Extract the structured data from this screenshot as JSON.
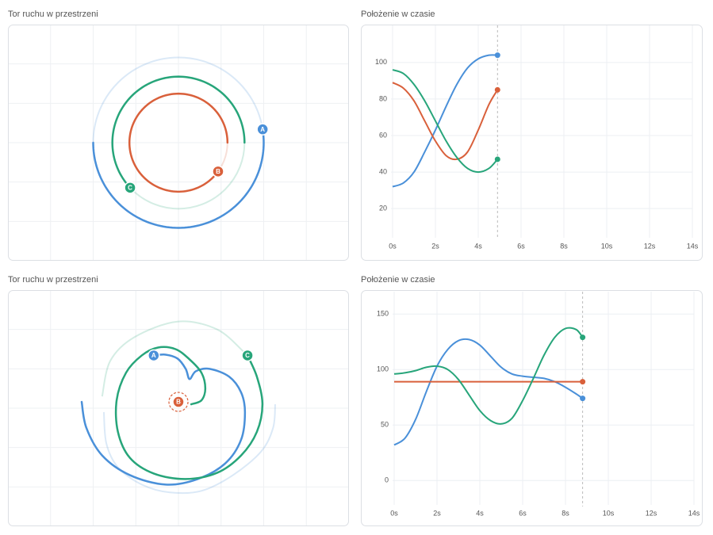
{
  "chart_data": [
    {
      "type": "orbit",
      "title": "Tor ruchu w przestrzeni",
      "xlim": [
        -4,
        4
      ],
      "ylim": [
        -3,
        3
      ],
      "xticks": [
        -3,
        -2,
        -1,
        0,
        1,
        2,
        3
      ],
      "yticks": [
        -2,
        -1,
        0,
        1,
        2
      ],
      "grid": true,
      "series": [
        {
          "name": "A",
          "color": "#4a90d9",
          "radius": 2,
          "start_angle": 180,
          "end_angle": 369
        },
        {
          "name": "C",
          "color": "#27a57a",
          "radius": 1.55,
          "start_angle": 0,
          "end_angle": 223
        },
        {
          "name": "B",
          "color": "#d9603b",
          "radius": 1.15,
          "start_angle": 0,
          "end_angle": 324
        }
      ]
    },
    {
      "type": "line",
      "title": "Położenie w czasie",
      "xlim": [
        0,
        14
      ],
      "ylim": [
        4,
        116
      ],
      "xticks": [
        {
          "value": 0,
          "label": "0s"
        },
        {
          "value": 2,
          "label": "2s"
        },
        {
          "value": 4,
          "label": "4s"
        },
        {
          "value": 6,
          "label": "6s"
        },
        {
          "value": 8,
          "label": "8s"
        },
        {
          "value": 10,
          "label": "10s"
        },
        {
          "value": 12,
          "label": "12s"
        },
        {
          "value": 14,
          "label": "14s"
        }
      ],
      "yticks": [
        20,
        40,
        60,
        80,
        100
      ],
      "grid": true,
      "current_time": 4.9,
      "x": [
        0,
        0.5,
        1,
        1.5,
        2,
        2.5,
        3,
        3.5,
        4,
        4.5,
        4.9
      ],
      "series": [
        {
          "name": "A",
          "color": "#4a90d9",
          "values": [
            32,
            34,
            40,
            51,
            63,
            76,
            88,
            97,
            102,
            104,
            104
          ]
        },
        {
          "name": "B",
          "color": "#d9603b",
          "values": [
            89,
            86,
            79,
            68,
            57,
            49,
            47,
            51,
            63,
            77,
            85
          ]
        },
        {
          "name": "C",
          "color": "#27a57a",
          "values": [
            96,
            94,
            88,
            79,
            68,
            57,
            48,
            42,
            40,
            42,
            47
          ]
        }
      ]
    },
    {
      "type": "path",
      "title": "Tor ruchu w przestrzeni",
      "xlim": [
        -4,
        4
      ],
      "ylim": [
        -3,
        3
      ],
      "xticks": [
        -3,
        -2,
        -1,
        0,
        1,
        2,
        3
      ],
      "yticks": [
        -2,
        -1,
        0,
        1,
        2
      ],
      "grid": true,
      "series": [
        {
          "name": "A",
          "color": "#4a90d9",
          "x": [
            -2.27,
            -2.16,
            -1.79,
            -1.14,
            -0.3,
            0.45,
            1.1,
            1.47,
            1.56,
            1.47,
            1.19,
            0.73,
            0.41,
            0.26,
            0.17,
            -0.02,
            -0.3,
            -0.58
          ],
          "y": [
            0.16,
            -0.5,
            -1.2,
            -1.7,
            -1.94,
            -1.8,
            -1.4,
            -0.8,
            -0.1,
            0.4,
            0.8,
            1.0,
            0.94,
            0.74,
            1.0,
            1.26,
            1.36,
            1.34
          ],
          "trail_x": [
            -1.75,
            -1.69,
            -1.42,
            -0.86,
            -0.2,
            0.54,
            1.28,
            1.94,
            2.22,
            2.27
          ],
          "trail_y": [
            -0.1,
            -0.9,
            -1.5,
            -1.94,
            -2.14,
            -2.1,
            -1.7,
            -1.1,
            -0.5,
            0.1
          ]
        },
        {
          "name": "C",
          "color": "#27a57a",
          "x": [
            0.3,
            0.54,
            0.63,
            0.54,
            0.26,
            -0.07,
            -0.48,
            -0.86,
            -1.23,
            -1.45,
            -1.42,
            -1.14,
            -0.58,
            0.17,
            0.91,
            1.47,
            1.84,
            1.97,
            1.84,
            1.62
          ],
          "y": [
            0.1,
            0.2,
            0.5,
            0.9,
            1.24,
            1.5,
            1.54,
            1.34,
            0.9,
            0.2,
            -0.6,
            -1.26,
            -1.66,
            -1.8,
            -1.64,
            -1.2,
            -0.6,
            0.1,
            0.8,
            1.34
          ],
          "trail_x": [
            -1.79,
            -1.6,
            -1.04,
            -0.02,
            0.91,
            1.56
          ],
          "trail_y": [
            0.3,
            1.2,
            1.8,
            2.2,
            2.0,
            1.4
          ]
        },
        {
          "name": "B",
          "color": "#d9603b",
          "x": [
            0
          ],
          "y": [
            0.16
          ]
        }
      ]
    },
    {
      "type": "line",
      "title": "Położenie w czasie",
      "xlim": [
        0,
        14
      ],
      "ylim": [
        -22,
        163
      ],
      "xticks": [
        {
          "value": 0,
          "label": "0s"
        },
        {
          "value": 2,
          "label": "2s"
        },
        {
          "value": 4,
          "label": "4s"
        },
        {
          "value": 6,
          "label": "6s"
        },
        {
          "value": 8,
          "label": "8s"
        },
        {
          "value": 10,
          "label": "10s"
        },
        {
          "value": 12,
          "label": "12s"
        },
        {
          "value": 14,
          "label": "14s"
        }
      ],
      "yticks": [
        0,
        50,
        100,
        150
      ],
      "grid": true,
      "current_time": 8.8,
      "x": [
        0,
        0.5,
        1,
        1.5,
        2,
        2.5,
        3,
        3.5,
        4,
        4.5,
        5,
        5.5,
        6,
        6.5,
        7,
        7.5,
        8,
        8.5,
        8.8
      ],
      "series": [
        {
          "name": "A",
          "color": "#4a90d9",
          "values": [
            32,
            38,
            55,
            80,
            103,
            118,
            126,
            127,
            122,
            112,
            102,
            96,
            94,
            93,
            92,
            89,
            84,
            78,
            74
          ]
        },
        {
          "name": "B",
          "color": "#d9603b",
          "values": [
            89,
            89,
            89,
            89,
            89,
            89,
            89,
            89,
            89,
            89,
            89,
            89,
            89,
            89,
            89,
            89,
            89,
            89,
            89
          ]
        },
        {
          "name": "C",
          "color": "#27a57a",
          "values": [
            96,
            97,
            99,
            102,
            103,
            100,
            91,
            77,
            63,
            54,
            51,
            56,
            72,
            92,
            113,
            129,
            137,
            136,
            129
          ]
        }
      ]
    }
  ]
}
